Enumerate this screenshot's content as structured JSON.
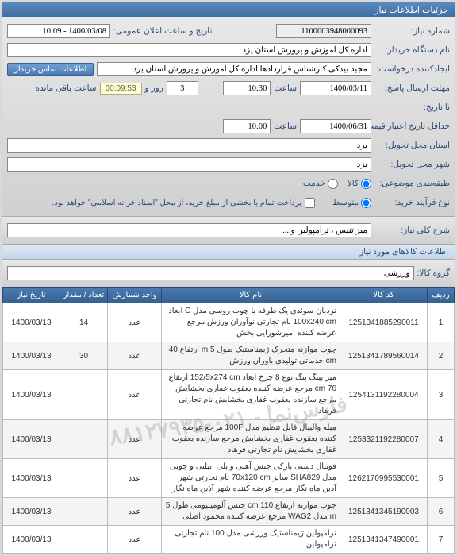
{
  "panel_title": "جزئیات اطلاعات نیاز",
  "fields": {
    "need_number_label": "شماره نیاز:",
    "need_number": "1100003948000093",
    "announce_label": "تاریخ و ساعت اعلان عمومی:",
    "announce_value": "1400/03/08 - 10:09",
    "buyer_org_label": "نام دستگاه خریدار:",
    "buyer_org": "اداره کل آموزش و پرورش استان یزد",
    "creator_label": "ایجادکننده درخواست:",
    "creator": "مجید بیدکی کارشناس قراردادها اداره کل آموزش و پرورش استان یزد",
    "contact_btn": "اطلاعات تماس خریدار",
    "deadline_label": "مهلت ارسال پاسخ:",
    "deadline_date": "1400/03/11",
    "deadline_time": "10:30",
    "saat": "ساعت",
    "remain_days": "3",
    "rooz_va": "روز و",
    "countdown": "00:09:53",
    "remain_label": "ساعت باقی مانده",
    "until_label": "تا تاریخ:",
    "min_valid_label": "حداقل تاریخ اعتبار قیمت:",
    "min_valid_date": "1400/06/31",
    "min_valid_time": "10:00",
    "delivery_state_label": "استان محل تحویل:",
    "delivery_state": "یزد",
    "delivery_city_label": "شهر محل تحویل:",
    "delivery_city": "یزد",
    "budget_label": "طبقه‌بندی موضوعی:",
    "budget_col1": "کالا",
    "budget_col2": "خدمت",
    "process_label": "نوع فرآیند خرید:",
    "process_opt1": "متوسط",
    "process_opt2": "پرداخت تمام یا بخشی از مبلغ خرید، از محل \"اسناد خزانه اسلامی\" خواهد بود."
  },
  "summary": {
    "title_label": "شرح کلی نیاز:",
    "title_value": "میز تنیس ، ترامپولین و...."
  },
  "items_section": "اطلاعات کالاهای مورد نیاز",
  "group": {
    "label": "گروه کالا:",
    "value": "ورزشی"
  },
  "table": {
    "headers": {
      "idx": "ردیف",
      "code": "کد کالا",
      "name": "نام کالا",
      "unit": "واحد شمارش",
      "qty": "تعداد / مقدار",
      "date": "تاریخ نیاز"
    },
    "rows": [
      {
        "idx": "1",
        "code": "1251341885290011",
        "name": "نردبان سوئدی یک طرفه با چوب روسی مدل C ابعاد 100x240 cm نام تجارتی نوآوران ورزش مرجع عرضه کننده امیرشورایی بخش",
        "unit": "عدد",
        "qty": "14",
        "date": "1400/03/13"
      },
      {
        "idx": "2",
        "code": "1251341789560014",
        "name": "چوب موازنه متحرک ژیمناستیک طول 5 m ارتفاع 40 cm خدماتی تولیدی باوران ورزش",
        "unit": "عدد",
        "qty": "30",
        "date": "1400/03/13"
      },
      {
        "idx": "3",
        "code": "1254131192280004",
        "name": "میز پینگ پنگ نوع 8 چرخ ابعاد 152/5x274 cm ارتفاع 76 cm مرجع عرضه کننده یعقوب غفاری بخشایش مرجع سازنده یعقوب غفاری بخشایش نام تجارتی فرهاد",
        "unit": "عدد",
        "qty": "",
        "date": "1400/03/13"
      },
      {
        "idx": "4",
        "code": "1253321192280007",
        "name": "میله والیبال قابل تنظیم مدل 100F مرجع عرضه کننده یعقوب غفاری بخشایش مرجع سازنده یعقوب غفاری بخشایش نام تجارتی فرهاد",
        "unit": "عدد",
        "qty": "",
        "date": "1400/03/13"
      },
      {
        "idx": "5",
        "code": "1262170995530001",
        "name": "فوتبال دستی پارکی جنس آهنی و پلی اتیلنی و چوبی مدل SHA829 سایز 70x120 cm نام تجارتی شهر آذین ماه نگار مرجع عرضه کننده شهر آذین ماه نگار",
        "unit": "عدد",
        "qty": "",
        "date": "1400/03/13"
      },
      {
        "idx": "6",
        "code": "1251341345190003",
        "name": "چوب موازنه ارتفاع 110 cm جنس آلومینیومی طول 5 m مدل WAG2 مرجع عرضه کننده محمود اصلی",
        "unit": "عدد",
        "qty": "",
        "date": "1400/03/13"
      },
      {
        "idx": "7",
        "code": "1251341347490001",
        "name": "ترامپولین ژیمناستیک ورزشی مدل 100 نام تجارتی ترامپولین",
        "unit": "عدد",
        "qty": "",
        "date": "1400/03/13"
      }
    ]
  },
  "watermark": "فارس‌نما - ۰۲۱-۸۸۱۲۷۹۳۵"
}
